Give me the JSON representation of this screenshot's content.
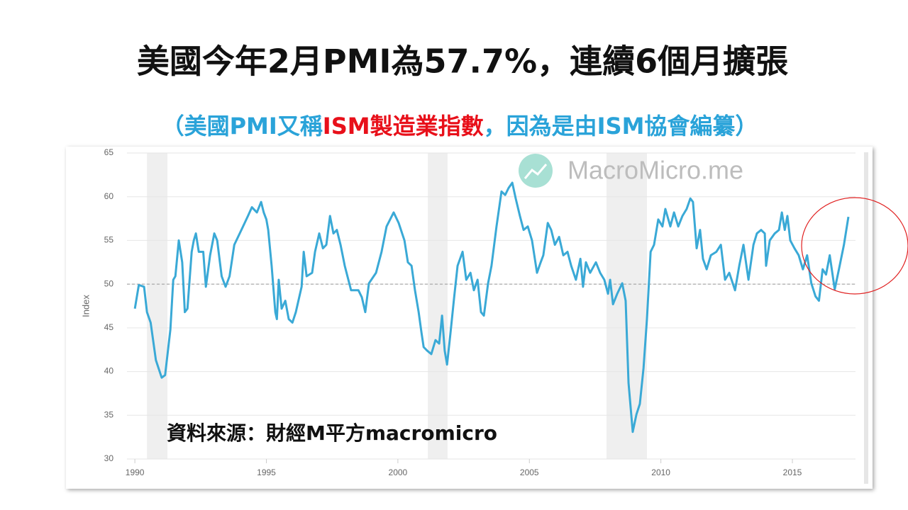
{
  "chart_data": {
    "type": "line",
    "title": "美國今年2月PMI為57.7%，連續6個月擴張",
    "subtitle_parts": [
      {
        "text": "（美國PMI又稱",
        "color": "#2aa3d9"
      },
      {
        "text": "ISM製造業指數",
        "color": "#e8101a"
      },
      {
        "text": "，因為是由ISM協會編纂）",
        "color": "#2aa3d9"
      }
    ],
    "watermark": "MacroMicro.me",
    "source": "資料來源：財經M平方macromicro",
    "ylabel": "Index",
    "xlim": [
      1989.7,
      2017.4
    ],
    "ylim": [
      30,
      65
    ],
    "xticks": [
      1990,
      1995,
      2000,
      2005,
      2010,
      2015
    ],
    "yticks": [
      30,
      35,
      40,
      45,
      50,
      55,
      60,
      65
    ],
    "grid": true,
    "reference_line": 50,
    "recessions": [
      [
        1990.46,
        1991.24
      ],
      [
        2001.14,
        2001.89
      ],
      [
        2007.93,
        2009.47
      ]
    ],
    "series": [
      {
        "name": "PMI",
        "color": "#3aa9d6",
        "x": [
          1990.0,
          1990.15,
          1990.35,
          1990.46,
          1990.6,
          1990.8,
          1991.02,
          1991.15,
          1991.35,
          1991.46,
          1991.54,
          1991.67,
          1991.8,
          1991.9,
          1992.0,
          1992.16,
          1992.24,
          1992.32,
          1992.43,
          1992.6,
          1992.7,
          1992.86,
          1993.02,
          1993.13,
          1993.3,
          1993.45,
          1993.6,
          1993.78,
          1994.05,
          1994.3,
          1994.45,
          1994.64,
          1994.8,
          1994.9,
          1995.0,
          1995.07,
          1995.2,
          1995.34,
          1995.4,
          1995.47,
          1995.58,
          1995.72,
          1995.85,
          1995.99,
          1996.12,
          1996.34,
          1996.42,
          1996.53,
          1996.74,
          1996.85,
          1997.01,
          1997.15,
          1997.28,
          1997.42,
          1997.55,
          1997.68,
          1997.82,
          1997.98,
          1998.22,
          1998.5,
          1998.63,
          1998.76,
          1998.9,
          1999.17,
          1999.38,
          1999.57,
          1999.84,
          2000.03,
          2000.25,
          2000.38,
          2000.52,
          2000.65,
          2000.79,
          2000.9,
          2000.98,
          2001.11,
          2001.27,
          2001.43,
          2001.57,
          2001.68,
          2001.78,
          2001.87,
          2002.0,
          2002.14,
          2002.27,
          2002.46,
          2002.6,
          2002.76,
          2002.89,
          2003.03,
          2003.16,
          2003.27,
          2003.43,
          2003.56,
          2003.75,
          2003.94,
          2004.08,
          2004.21,
          2004.35,
          2004.48,
          2004.64,
          2004.78,
          2004.94,
          2005.1,
          2005.29,
          2005.43,
          2005.53,
          2005.7,
          2005.83,
          2005.97,
          2006.13,
          2006.29,
          2006.45,
          2006.59,
          2006.77,
          2006.94,
          2007.04,
          2007.15,
          2007.31,
          2007.53,
          2007.69,
          2007.85,
          2007.99,
          2008.07,
          2008.18,
          2008.34,
          2008.53,
          2008.66,
          2008.77,
          2008.93,
          2009.07,
          2009.2,
          2009.34,
          2009.47,
          2009.61,
          2009.74,
          2009.9,
          2010.06,
          2010.17,
          2010.36,
          2010.5,
          2010.66,
          2010.82,
          2010.98,
          2011.12,
          2011.22,
          2011.36,
          2011.49,
          2011.6,
          2011.74,
          2011.9,
          2012.11,
          2012.28,
          2012.44,
          2012.6,
          2012.82,
          2012.98,
          2013.14,
          2013.33,
          2013.52,
          2013.65,
          2013.81,
          2013.95,
          2014.0,
          2014.14,
          2014.33,
          2014.49,
          2014.6,
          2014.71,
          2014.81,
          2014.92,
          2015.08,
          2015.24,
          2015.4,
          2015.56,
          2015.72,
          2015.88,
          2016.01,
          2016.15,
          2016.28,
          2016.42,
          2016.61,
          2016.77,
          2016.96,
          2017.13
        ],
        "values": [
          47.2,
          49.9,
          49.7,
          46.8,
          45.6,
          41.3,
          39.3,
          39.6,
          44.8,
          50.5,
          50.9,
          55.0,
          52.5,
          46.8,
          47.2,
          53.7,
          55.0,
          55.8,
          53.7,
          53.7,
          49.7,
          53.3,
          55.8,
          55.0,
          50.9,
          49.7,
          50.9,
          54.5,
          56.2,
          57.8,
          58.8,
          58.2,
          59.4,
          58.2,
          57.4,
          56.2,
          52.1,
          46.8,
          46.0,
          50.5,
          47.2,
          48.1,
          46.0,
          45.6,
          46.8,
          49.7,
          53.7,
          50.9,
          51.3,
          53.7,
          55.8,
          54.1,
          54.5,
          57.8,
          55.8,
          56.2,
          54.5,
          52.1,
          49.3,
          49.3,
          48.5,
          46.8,
          50.1,
          51.3,
          53.7,
          56.6,
          58.2,
          57.0,
          55.0,
          52.5,
          52.1,
          49.3,
          46.8,
          44.4,
          42.8,
          42.4,
          42.0,
          43.6,
          43.2,
          46.4,
          42.4,
          40.8,
          44.4,
          48.5,
          52.1,
          53.7,
          50.5,
          51.3,
          49.3,
          50.5,
          46.8,
          46.4,
          50.1,
          52.1,
          56.6,
          60.6,
          60.2,
          61.0,
          61.6,
          59.8,
          57.8,
          56.2,
          56.6,
          55.0,
          51.3,
          52.5,
          53.3,
          57.0,
          56.2,
          54.5,
          55.4,
          53.3,
          53.7,
          52.1,
          50.5,
          52.9,
          49.7,
          52.5,
          51.3,
          52.5,
          51.3,
          50.5,
          48.9,
          50.5,
          47.7,
          48.9,
          50.1,
          48.1,
          38.7,
          33.1,
          35.1,
          36.3,
          40.4,
          46.0,
          53.7,
          54.5,
          57.4,
          56.6,
          58.6,
          56.6,
          58.2,
          56.6,
          57.8,
          58.6,
          59.8,
          59.4,
          54.1,
          56.2,
          52.9,
          51.7,
          53.3,
          53.7,
          54.5,
          50.5,
          51.3,
          49.3,
          52.1,
          54.5,
          50.5,
          54.5,
          55.8,
          56.2,
          55.8,
          52.1,
          55.0,
          55.8,
          56.2,
          58.2,
          56.2,
          57.8,
          55.0,
          54.1,
          53.3,
          51.7,
          53.3,
          50.1,
          48.6,
          48.1,
          51.7,
          51.1,
          53.3,
          49.4,
          51.7,
          54.5,
          57.7
        ]
      }
    ]
  }
}
